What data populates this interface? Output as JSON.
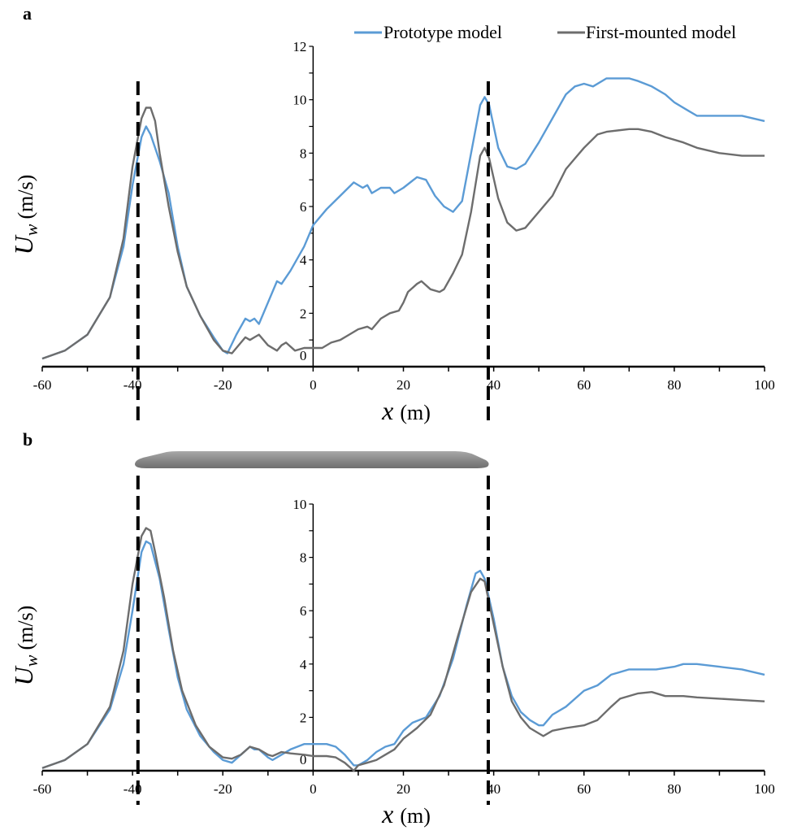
{
  "colors": {
    "prototype": "#5b9bd5",
    "first_mounted": "#6d6d6d",
    "marker_lines": "#000000",
    "vehicle": "#8c8c8c"
  },
  "legend": {
    "placement": "top-right",
    "items": [
      "Prototype model",
      "First-mounted model"
    ]
  },
  "chart_data": [
    {
      "panel_label": "a",
      "type": "line",
      "xlabel_var": "x",
      "xlabel_unit": "(m)",
      "ylabel_var": "U",
      "ylabel_sub": "w",
      "ylabel_unit": "(m/s)",
      "xlim": [
        -60,
        100
      ],
      "ylim": [
        0,
        12
      ],
      "x_ticks": [
        -60,
        -40,
        -20,
        0,
        20,
        40,
        60,
        80,
        100
      ],
      "y_ticks": [
        0,
        2,
        4,
        6,
        8,
        10,
        12
      ],
      "grid": false,
      "vertical_markers": [
        -38.8,
        38.8
      ],
      "series": [
        {
          "name": "Prototype model",
          "points": [
            [
              -60,
              0.3
            ],
            [
              -55,
              0.6
            ],
            [
              -50,
              1.2
            ],
            [
              -45,
              2.6
            ],
            [
              -42,
              4.5
            ],
            [
              -40,
              6.8
            ],
            [
              -38,
              8.6
            ],
            [
              -37,
              9.0
            ],
            [
              -36,
              8.7
            ],
            [
              -34,
              7.7
            ],
            [
              -32,
              6.5
            ],
            [
              -30,
              4.5
            ],
            [
              -28,
              3.0
            ],
            [
              -25,
              1.9
            ],
            [
              -22,
              1.1
            ],
            [
              -20,
              0.6
            ],
            [
              -19,
              0.5
            ],
            [
              -17,
              1.2
            ],
            [
              -15,
              1.8
            ],
            [
              -14,
              1.7
            ],
            [
              -13,
              1.8
            ],
            [
              -12,
              1.6
            ],
            [
              -10,
              2.4
            ],
            [
              -8,
              3.2
            ],
            [
              -7,
              3.1
            ],
            [
              -5,
              3.6
            ],
            [
              -2,
              4.5
            ],
            [
              0,
              5.3
            ],
            [
              3,
              5.9
            ],
            [
              6,
              6.4
            ],
            [
              9,
              6.9
            ],
            [
              11,
              6.7
            ],
            [
              12,
              6.8
            ],
            [
              13,
              6.5
            ],
            [
              15,
              6.7
            ],
            [
              17,
              6.7
            ],
            [
              18,
              6.5
            ],
            [
              20,
              6.7
            ],
            [
              23,
              7.1
            ],
            [
              25,
              7.0
            ],
            [
              27,
              6.4
            ],
            [
              29,
              6.0
            ],
            [
              31,
              5.8
            ],
            [
              33,
              6.2
            ],
            [
              35,
              8.0
            ],
            [
              37,
              9.8
            ],
            [
              38,
              10.1
            ],
            [
              39,
              9.8
            ],
            [
              41,
              8.2
            ],
            [
              43,
              7.5
            ],
            [
              45,
              7.4
            ],
            [
              47,
              7.6
            ],
            [
              50,
              8.4
            ],
            [
              53,
              9.3
            ],
            [
              56,
              10.2
            ],
            [
              58,
              10.5
            ],
            [
              60,
              10.6
            ],
            [
              62,
              10.5
            ],
            [
              65,
              10.8
            ],
            [
              68,
              10.8
            ],
            [
              70,
              10.8
            ],
            [
              72,
              10.7
            ],
            [
              75,
              10.5
            ],
            [
              78,
              10.2
            ],
            [
              80,
              9.9
            ],
            [
              83,
              9.6
            ],
            [
              85,
              9.4
            ],
            [
              90,
              9.4
            ],
            [
              95,
              9.4
            ],
            [
              100,
              9.2
            ]
          ]
        },
        {
          "name": "First-mounted model",
          "points": [
            [
              -60,
              0.3
            ],
            [
              -55,
              0.6
            ],
            [
              -50,
              1.2
            ],
            [
              -45,
              2.6
            ],
            [
              -42,
              4.8
            ],
            [
              -40,
              7.5
            ],
            [
              -38,
              9.3
            ],
            [
              -37,
              9.7
            ],
            [
              -36,
              9.7
            ],
            [
              -35,
              9.2
            ],
            [
              -34,
              8.0
            ],
            [
              -32,
              6.0
            ],
            [
              -30,
              4.3
            ],
            [
              -28,
              3.0
            ],
            [
              -25,
              1.9
            ],
            [
              -22,
              1.0
            ],
            [
              -20,
              0.6
            ],
            [
              -18,
              0.5
            ],
            [
              -16,
              0.9
            ],
            [
              -15,
              1.1
            ],
            [
              -14,
              1.0
            ],
            [
              -13,
              1.1
            ],
            [
              -12,
              1.2
            ],
            [
              -10,
              0.8
            ],
            [
              -8,
              0.6
            ],
            [
              -7,
              0.8
            ],
            [
              -6,
              0.9
            ],
            [
              -4,
              0.6
            ],
            [
              -2,
              0.7
            ],
            [
              0,
              0.7
            ],
            [
              2,
              0.7
            ],
            [
              4,
              0.9
            ],
            [
              6,
              1.0
            ],
            [
              8,
              1.2
            ],
            [
              10,
              1.4
            ],
            [
              12,
              1.5
            ],
            [
              13,
              1.4
            ],
            [
              15,
              1.8
            ],
            [
              17,
              2.0
            ],
            [
              19,
              2.1
            ],
            [
              20,
              2.4
            ],
            [
              21,
              2.8
            ],
            [
              23,
              3.1
            ],
            [
              24,
              3.2
            ],
            [
              26,
              2.9
            ],
            [
              28,
              2.8
            ],
            [
              29,
              2.9
            ],
            [
              31,
              3.5
            ],
            [
              33,
              4.2
            ],
            [
              35,
              5.8
            ],
            [
              37,
              7.9
            ],
            [
              38,
              8.2
            ],
            [
              39,
              7.8
            ],
            [
              41,
              6.3
            ],
            [
              43,
              5.4
            ],
            [
              45,
              5.1
            ],
            [
              47,
              5.2
            ],
            [
              48,
              5.4
            ],
            [
              50,
              5.8
            ],
            [
              53,
              6.4
            ],
            [
              56,
              7.4
            ],
            [
              58,
              7.8
            ],
            [
              60,
              8.2
            ],
            [
              63,
              8.7
            ],
            [
              65,
              8.8
            ],
            [
              70,
              8.9
            ],
            [
              72,
              8.9
            ],
            [
              75,
              8.8
            ],
            [
              78,
              8.6
            ],
            [
              82,
              8.4
            ],
            [
              85,
              8.2
            ],
            [
              90,
              8.0
            ],
            [
              95,
              7.9
            ],
            [
              100,
              7.9
            ]
          ]
        }
      ]
    },
    {
      "panel_label": "b",
      "type": "line",
      "xlabel_var": "x",
      "xlabel_unit": "(m)",
      "ylabel_var": "U",
      "ylabel_sub": "w",
      "ylabel_unit": "(m/s)",
      "xlim": [
        -60,
        100
      ],
      "ylim": [
        0,
        10
      ],
      "x_ticks": [
        -60,
        -40,
        -20,
        0,
        20,
        40,
        60,
        80,
        100
      ],
      "y_ticks": [
        0,
        2,
        4,
        6,
        8,
        10
      ],
      "grid": false,
      "vertical_markers": [
        -38.8,
        38.8
      ],
      "series": [
        {
          "name": "Prototype model",
          "points": [
            [
              -60,
              0.1
            ],
            [
              -55,
              0.4
            ],
            [
              -50,
              1.0
            ],
            [
              -45,
              2.3
            ],
            [
              -42,
              4.0
            ],
            [
              -40,
              6.0
            ],
            [
              -38,
              8.2
            ],
            [
              -37,
              8.6
            ],
            [
              -36,
              8.5
            ],
            [
              -34,
              7.2
            ],
            [
              -32,
              5.3
            ],
            [
              -30,
              3.5
            ],
            [
              -28,
              2.3
            ],
            [
              -25,
              1.3
            ],
            [
              -22,
              0.7
            ],
            [
              -20,
              0.4
            ],
            [
              -18,
              0.3
            ],
            [
              -16,
              0.6
            ],
            [
              -14,
              0.9
            ],
            [
              -13,
              0.8
            ],
            [
              -12,
              0.8
            ],
            [
              -10,
              0.5
            ],
            [
              -9,
              0.4
            ],
            [
              -7,
              0.6
            ],
            [
              -5,
              0.8
            ],
            [
              -2,
              1.0
            ],
            [
              0,
              1.0
            ],
            [
              3,
              1.0
            ],
            [
              5,
              0.9
            ],
            [
              7,
              0.6
            ],
            [
              9,
              0.2
            ],
            [
              10,
              0.2
            ],
            [
              12,
              0.4
            ],
            [
              14,
              0.7
            ],
            [
              16,
              0.9
            ],
            [
              18,
              1.0
            ],
            [
              20,
              1.5
            ],
            [
              22,
              1.8
            ],
            [
              25,
              2.0
            ],
            [
              28,
              2.8
            ],
            [
              31,
              4.2
            ],
            [
              34,
              6.2
            ],
            [
              36,
              7.4
            ],
            [
              37,
              7.5
            ],
            [
              38,
              7.2
            ],
            [
              40,
              5.7
            ],
            [
              42,
              3.9
            ],
            [
              44,
              2.8
            ],
            [
              46,
              2.2
            ],
            [
              48,
              1.9
            ],
            [
              50,
              1.7
            ],
            [
              51,
              1.7
            ],
            [
              53,
              2.1
            ],
            [
              56,
              2.4
            ],
            [
              60,
              3.0
            ],
            [
              63,
              3.2
            ],
            [
              66,
              3.6
            ],
            [
              70,
              3.8
            ],
            [
              73,
              3.8
            ],
            [
              76,
              3.8
            ],
            [
              80,
              3.9
            ],
            [
              82,
              4.0
            ],
            [
              85,
              4.0
            ],
            [
              90,
              3.9
            ],
            [
              95,
              3.8
            ],
            [
              100,
              3.6
            ]
          ]
        },
        {
          "name": "First-mounted model",
          "points": [
            [
              -60,
              0.1
            ],
            [
              -55,
              0.4
            ],
            [
              -50,
              1.0
            ],
            [
              -45,
              2.4
            ],
            [
              -42,
              4.5
            ],
            [
              -40,
              7.0
            ],
            [
              -38,
              8.8
            ],
            [
              -37,
              9.1
            ],
            [
              -36,
              9.0
            ],
            [
              -35,
              8.2
            ],
            [
              -33,
              6.5
            ],
            [
              -31,
              4.5
            ],
            [
              -29,
              3.0
            ],
            [
              -26,
              1.7
            ],
            [
              -23,
              0.9
            ],
            [
              -20,
              0.5
            ],
            [
              -18,
              0.45
            ],
            [
              -16,
              0.6
            ],
            [
              -14,
              0.9
            ],
            [
              -12,
              0.8
            ],
            [
              -10,
              0.6
            ],
            [
              -9,
              0.55
            ],
            [
              -7,
              0.7
            ],
            [
              -5,
              0.65
            ],
            [
              -2,
              0.6
            ],
            [
              0,
              0.55
            ],
            [
              3,
              0.55
            ],
            [
              5,
              0.5
            ],
            [
              7,
              0.3
            ],
            [
              9,
              0.0
            ],
            [
              10,
              0.2
            ],
            [
              12,
              0.3
            ],
            [
              14,
              0.4
            ],
            [
              16,
              0.6
            ],
            [
              18,
              0.8
            ],
            [
              20,
              1.2
            ],
            [
              23,
              1.6
            ],
            [
              26,
              2.1
            ],
            [
              29,
              3.2
            ],
            [
              32,
              5.0
            ],
            [
              35,
              6.7
            ],
            [
              37,
              7.2
            ],
            [
              38,
              7.1
            ],
            [
              40,
              5.5
            ],
            [
              42,
              3.9
            ],
            [
              44,
              2.6
            ],
            [
              46,
              2.0
            ],
            [
              48,
              1.6
            ],
            [
              50,
              1.4
            ],
            [
              51,
              1.3
            ],
            [
              53,
              1.5
            ],
            [
              56,
              1.6
            ],
            [
              60,
              1.7
            ],
            [
              63,
              1.9
            ],
            [
              66,
              2.4
            ],
            [
              68,
              2.7
            ],
            [
              72,
              2.9
            ],
            [
              75,
              2.95
            ],
            [
              78,
              2.8
            ],
            [
              82,
              2.8
            ],
            [
              85,
              2.75
            ],
            [
              90,
              2.7
            ],
            [
              95,
              2.65
            ],
            [
              100,
              2.6
            ]
          ]
        }
      ]
    }
  ]
}
